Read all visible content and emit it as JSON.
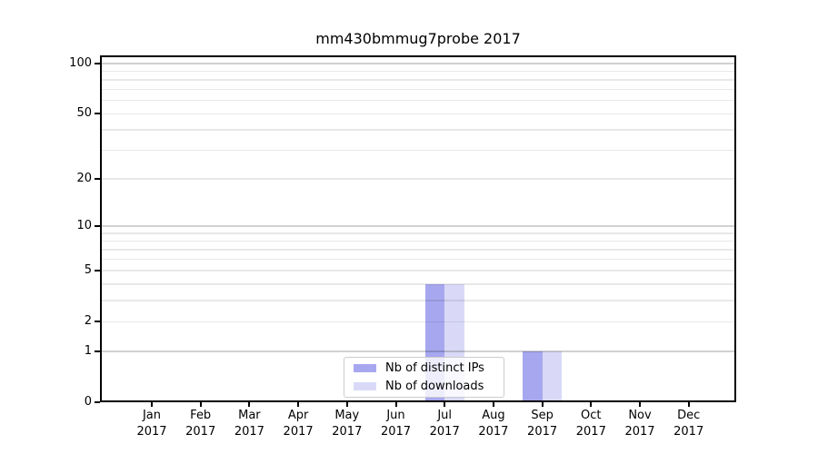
{
  "chart_data": {
    "type": "bar",
    "title": "mm430bmmug7probe 2017",
    "x": {
      "months": [
        "Jan",
        "Feb",
        "Mar",
        "Apr",
        "May",
        "Jun",
        "Jul",
        "Aug",
        "Sep",
        "Oct",
        "Nov",
        "Dec"
      ],
      "year": "2017"
    },
    "series": [
      {
        "name": "Nb of distinct IPs",
        "color": "#a7a7f0",
        "values": [
          0,
          0,
          0,
          0,
          0,
          0,
          4,
          0,
          1,
          0,
          0,
          0
        ]
      },
      {
        "name": "Nb of downloads",
        "color": "#d9d9f7",
        "values": [
          0,
          0,
          0,
          0,
          0,
          0,
          4,
          0,
          1,
          0,
          0,
          0
        ]
      }
    ],
    "y_axis": {
      "scale": "log1p",
      "tick_labels": [
        0,
        1,
        2,
        5,
        10,
        20,
        50,
        100
      ],
      "major_gridlines": [
        1,
        10,
        100
      ],
      "minor_gridlines": [
        2,
        3,
        4,
        5,
        6,
        7,
        8,
        9,
        20,
        30,
        40,
        50,
        60,
        70,
        80,
        90
      ],
      "ylim": [
        0,
        112
      ]
    },
    "legend": {
      "position": "lower center",
      "entries": [
        "Nb of distinct IPs",
        "Nb of downloads"
      ]
    },
    "grid": true
  }
}
